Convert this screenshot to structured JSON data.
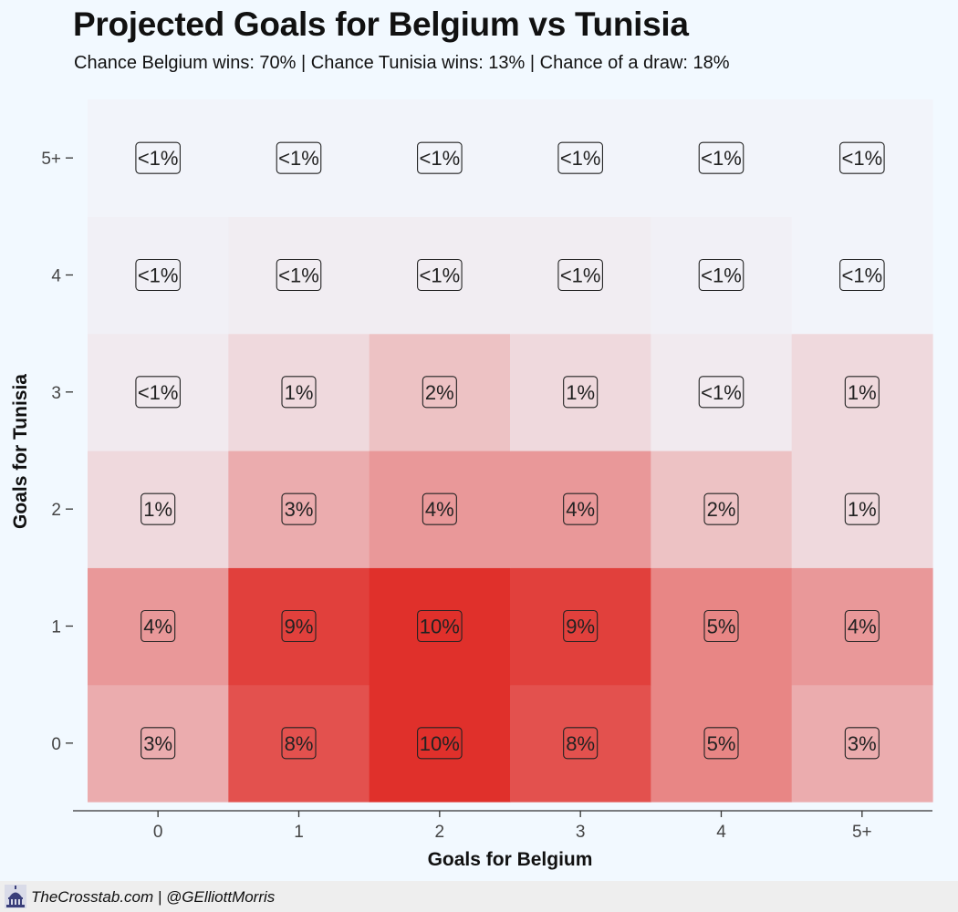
{
  "chart_data": {
    "type": "heatmap",
    "title": "Projected Goals for Belgium vs Tunisia",
    "subtitle": "Chance Belgium wins: 70% | Chance Tunisia wins: 13% | Chance of a draw: 18%",
    "xlabel": "Goals for Belgium",
    "ylabel": "Goals for Tunisia",
    "x_categories": [
      "0",
      "1",
      "2",
      "3",
      "4",
      "5+"
    ],
    "y_categories": [
      "0",
      "1",
      "2",
      "3",
      "4",
      "5+"
    ],
    "values": [
      [
        0.03,
        0.08,
        0.1,
        0.08,
        0.05,
        0.03
      ],
      [
        0.04,
        0.09,
        0.1,
        0.09,
        0.05,
        0.04
      ],
      [
        0.01,
        0.03,
        0.04,
        0.04,
        0.02,
        0.01
      ],
      [
        0.004,
        0.01,
        0.02,
        0.01,
        0.004,
        0.01
      ],
      [
        0.002,
        0.003,
        0.003,
        0.003,
        0.002,
        0.001
      ],
      [
        0.001,
        0.001,
        0.001,
        0.001,
        0.001,
        0.001
      ]
    ],
    "labels": [
      [
        "3%",
        "8%",
        "10%",
        "8%",
        "5%",
        "3%"
      ],
      [
        "4%",
        "9%",
        "10%",
        "9%",
        "5%",
        "4%"
      ],
      [
        "1%",
        "3%",
        "4%",
        "4%",
        "2%",
        "1%"
      ],
      [
        "<1%",
        "1%",
        "2%",
        "1%",
        "<1%",
        "1%"
      ],
      [
        "<1%",
        "<1%",
        "<1%",
        "<1%",
        "<1%",
        "<1%"
      ],
      [
        "<1%",
        "<1%",
        "<1%",
        "<1%",
        "<1%",
        "<1%"
      ]
    ],
    "color_low": "#f2f9ff",
    "color_high": "#e0302b",
    "grid": false
  },
  "footer": {
    "credit": "TheCrosstab.com | @GElliottMorris",
    "logo_icon": "capitol-dome-icon"
  }
}
